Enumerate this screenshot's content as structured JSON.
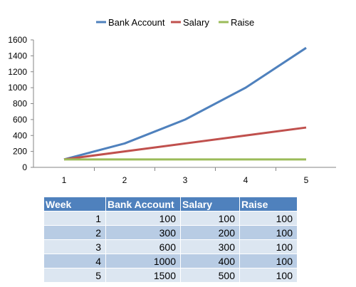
{
  "chart_data": {
    "type": "line",
    "x": [
      1,
      2,
      3,
      4,
      5
    ],
    "xticks": [
      "1",
      "2",
      "3",
      "4",
      "5"
    ],
    "yticks": [
      "0",
      "200",
      "400",
      "600",
      "800",
      "1000",
      "1200",
      "1400",
      "1600"
    ],
    "ylim": [
      0,
      1600
    ],
    "grid": false,
    "legend_position": "top",
    "series": [
      {
        "name": "Bank Account",
        "values": [
          100,
          300,
          600,
          1000,
          1500
        ],
        "color": "#4f81bd"
      },
      {
        "name": "Salary",
        "values": [
          100,
          200,
          300,
          400,
          500
        ],
        "color": "#c0504d"
      },
      {
        "name": "Raise",
        "values": [
          100,
          100,
          100,
          100,
          100
        ],
        "color": "#9bbb59"
      }
    ]
  },
  "table": {
    "headers": [
      "Week",
      "Bank Account",
      "Salary",
      "Raise"
    ],
    "rows": [
      [
        "1",
        "100",
        "100",
        "100"
      ],
      [
        "2",
        "300",
        "200",
        "100"
      ],
      [
        "3",
        "600",
        "300",
        "100"
      ],
      [
        "4",
        "1000",
        "400",
        "100"
      ],
      [
        "5",
        "1500",
        "500",
        "100"
      ]
    ]
  }
}
